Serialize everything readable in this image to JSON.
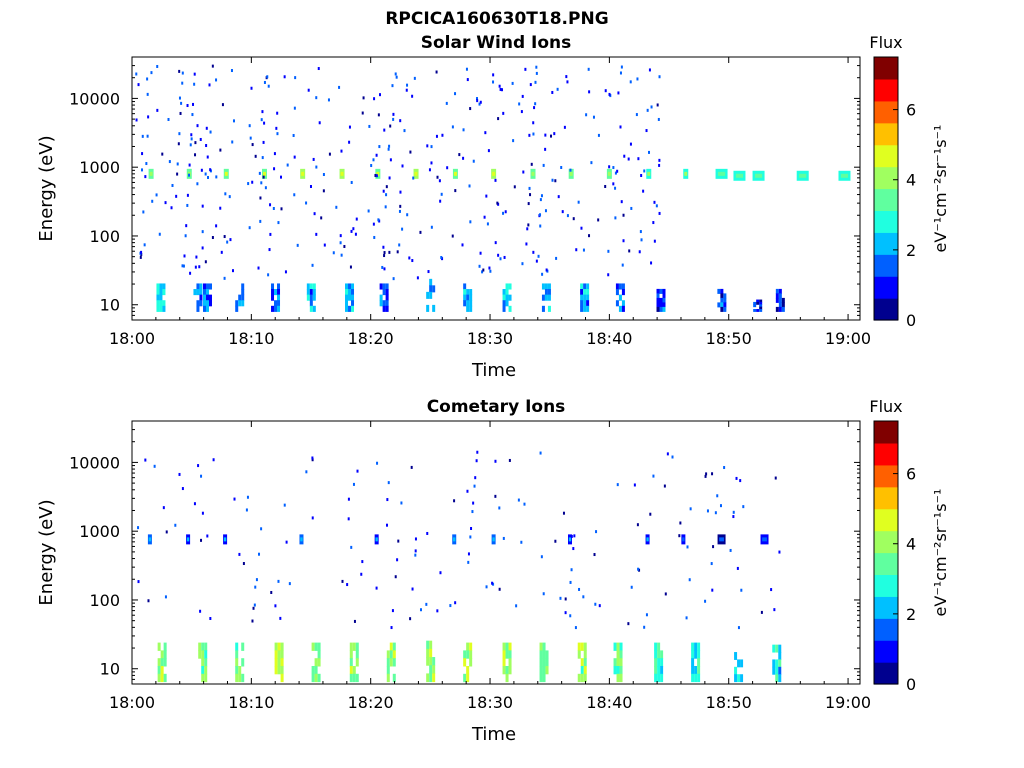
{
  "figure": {
    "title": "RPCICA160630T18.PNG"
  },
  "colormap": [
    "#00008f",
    "#0000ff",
    "#0060ff",
    "#00c0ff",
    "#20ffe0",
    "#60ff9f",
    "#a0ff60",
    "#e0ff20",
    "#ffc000",
    "#ff6000",
    "#ff0000",
    "#800000"
  ],
  "chart_data": [
    {
      "type": "heatmap",
      "title": "Solar Wind Ions",
      "xlabel": "Time",
      "ylabel": "Energy (eV)",
      "x_ticks": [
        "18:00",
        "18:10",
        "18:20",
        "18:30",
        "18:40",
        "18:50",
        "19:00"
      ],
      "xlim_minutes": [
        0,
        61
      ],
      "y_scale": "log",
      "y_ticks": [
        10,
        100,
        1000,
        10000
      ],
      "ylim": [
        6,
        40000
      ],
      "colorbar": {
        "label": "Flux",
        "unit_label": "eV⁻¹cm⁻²sr⁻¹s⁻¹",
        "ticks": [
          0,
          2,
          4,
          6
        ],
        "range": [
          0,
          7.5
        ]
      },
      "bands": [
        {
          "t": 1.6,
          "e": 800,
          "v": 3.2
        },
        {
          "t": 4.8,
          "e": 800,
          "v": 3.5
        },
        {
          "t": 7.9,
          "e": 800,
          "v": 3.6
        },
        {
          "t": 11.1,
          "e": 800,
          "v": 3.6
        },
        {
          "t": 14.3,
          "e": 800,
          "v": 3.8
        },
        {
          "t": 17.6,
          "e": 800,
          "v": 3.9
        },
        {
          "t": 20.6,
          "e": 800,
          "v": 3.7
        },
        {
          "t": 23.8,
          "e": 800,
          "v": 3.8
        },
        {
          "t": 27.1,
          "e": 800,
          "v": 3.6
        },
        {
          "t": 30.3,
          "e": 800,
          "v": 3.8
        },
        {
          "t": 33.6,
          "e": 800,
          "v": 3.5
        },
        {
          "t": 36.8,
          "e": 800,
          "v": 3.4
        },
        {
          "t": 40.0,
          "e": 800,
          "v": 3.2
        },
        {
          "t": 43.3,
          "e": 800,
          "v": 3.0
        },
        {
          "t": 46.4,
          "e": 800,
          "v": 3.1
        },
        {
          "t": 49.4,
          "e": 800,
          "v": 2.8
        },
        {
          "t": 50.9,
          "e": 750,
          "v": 2.7
        },
        {
          "t": 52.5,
          "e": 750,
          "v": 2.6
        },
        {
          "t": 56.2,
          "e": 750,
          "v": 2.8
        },
        {
          "t": 59.7,
          "e": 750,
          "v": 2.9
        }
      ],
      "low": [
        {
          "t": 2.3,
          "e": 12,
          "v": 2.4
        },
        {
          "t": 5.4,
          "e": 12,
          "v": 1.8
        },
        {
          "t": 6.2,
          "e": 12,
          "v": 1.6
        },
        {
          "t": 8.9,
          "e": 12,
          "v": 2.0
        },
        {
          "t": 11.9,
          "e": 12,
          "v": 1.7
        },
        {
          "t": 14.9,
          "e": 12,
          "v": 1.9
        },
        {
          "t": 18.1,
          "e": 12,
          "v": 2.0
        },
        {
          "t": 21.0,
          "e": 12,
          "v": 1.8
        },
        {
          "t": 24.9,
          "e": 14,
          "v": 2.3
        },
        {
          "t": 28.0,
          "e": 12,
          "v": 1.9
        },
        {
          "t": 31.3,
          "e": 12,
          "v": 2.1
        },
        {
          "t": 34.6,
          "e": 12,
          "v": 2.0
        },
        {
          "t": 37.8,
          "e": 12,
          "v": 1.8
        },
        {
          "t": 40.8,
          "e": 12,
          "v": 1.6
        },
        {
          "t": 44.2,
          "e": 10,
          "v": 1.2
        },
        {
          "t": 49.3,
          "e": 10,
          "v": 1.2
        },
        {
          "t": 54.2,
          "e": 10,
          "v": 1.1
        },
        {
          "t": 52.3,
          "e": 7,
          "v": 1.0
        }
      ]
    },
    {
      "type": "heatmap",
      "title": "Cometary Ions",
      "xlabel": "Time",
      "ylabel": "Energy (eV)",
      "x_ticks": [
        "18:00",
        "18:10",
        "18:20",
        "18:30",
        "18:40",
        "18:50",
        "19:00"
      ],
      "xlim_minutes": [
        0,
        61
      ],
      "y_scale": "log",
      "y_ticks": [
        10,
        100,
        1000,
        10000
      ],
      "ylim": [
        6,
        40000
      ],
      "colorbar": {
        "label": "Flux",
        "unit_label": "eV⁻¹cm⁻²sr⁻¹s⁻¹",
        "ticks": [
          0,
          2,
          4,
          6
        ],
        "range": [
          0,
          7.5
        ]
      },
      "bands": [
        {
          "t": 1.5,
          "e": 760,
          "v": 1.3
        },
        {
          "t": 4.7,
          "e": 760,
          "v": 1.2
        },
        {
          "t": 7.8,
          "e": 760,
          "v": 1.2
        },
        {
          "t": 14.2,
          "e": 760,
          "v": 1.3
        },
        {
          "t": 20.5,
          "e": 760,
          "v": 1.1
        },
        {
          "t": 27.0,
          "e": 760,
          "v": 1.4
        },
        {
          "t": 30.3,
          "e": 760,
          "v": 1.3
        },
        {
          "t": 36.7,
          "e": 760,
          "v": 1.2
        },
        {
          "t": 43.2,
          "e": 760,
          "v": 1.1
        },
        {
          "t": 46.2,
          "e": 760,
          "v": 1.0
        },
        {
          "t": 49.4,
          "e": 760,
          "v": 0.6
        },
        {
          "t": 53.0,
          "e": 760,
          "v": 0.7
        }
      ],
      "low": [
        {
          "t": 2.4,
          "e": 15,
          "v": 3.8
        },
        {
          "t": 5.8,
          "e": 15,
          "v": 3.5
        },
        {
          "t": 8.9,
          "e": 15,
          "v": 3.6
        },
        {
          "t": 12.2,
          "e": 15,
          "v": 4.2
        },
        {
          "t": 15.3,
          "e": 15,
          "v": 3.9
        },
        {
          "t": 18.5,
          "e": 15,
          "v": 4.0
        },
        {
          "t": 21.6,
          "e": 15,
          "v": 3.9
        },
        {
          "t": 24.9,
          "e": 16,
          "v": 4.4
        },
        {
          "t": 28.0,
          "e": 15,
          "v": 3.8
        },
        {
          "t": 31.3,
          "e": 15,
          "v": 3.9
        },
        {
          "t": 34.4,
          "e": 15,
          "v": 3.7
        },
        {
          "t": 37.6,
          "e": 15,
          "v": 3.8
        },
        {
          "t": 40.6,
          "e": 15,
          "v": 3.4
        },
        {
          "t": 44.0,
          "e": 15,
          "v": 3.0
        },
        {
          "t": 47.1,
          "e": 15,
          "v": 2.8
        },
        {
          "t": 50.7,
          "e": 14,
          "v": 2.3
        },
        {
          "t": 53.9,
          "e": 14,
          "v": 2.5
        }
      ]
    }
  ]
}
